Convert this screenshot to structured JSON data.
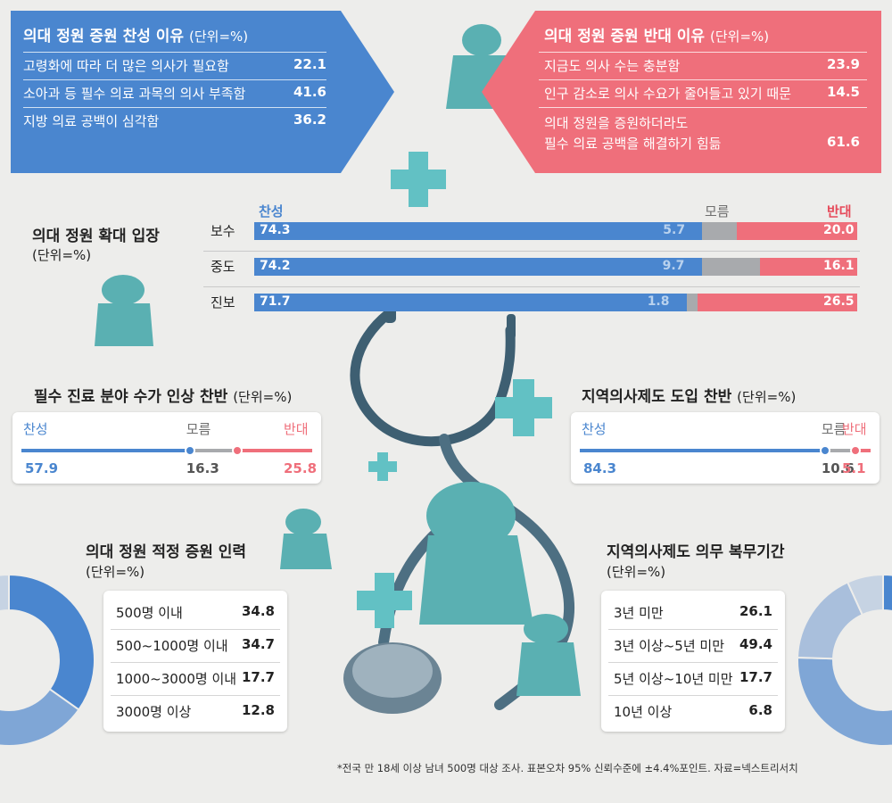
{
  "colors": {
    "support": "#4a86cf",
    "oppose": "#ef6f7b",
    "unknown": "#a8aaad",
    "teal": "#5ab0b2"
  },
  "reasons_for": {
    "title": "의대 정원 증원 찬성 이유",
    "unit": "(단위=%)",
    "items": [
      {
        "label": "고령화에 따라 더 많은 의사가 필요함",
        "value": "22.1"
      },
      {
        "label": "소아과 등 필수 의료 과목의 의사 부족함",
        "value": "41.6"
      },
      {
        "label": "지방 의료 공백이 심각함",
        "value": "36.2"
      }
    ]
  },
  "reasons_against": {
    "title": "의대 정원 증원 반대 이유",
    "unit": "(단위=%)",
    "items": [
      {
        "label": "지금도 의사 수는 충분함",
        "value": "23.9"
      },
      {
        "label": "인구 감소로 의사 수요가 줄어들고 있기 때문",
        "value": "14.5"
      },
      {
        "label": "의대 정원을 증원하더라도",
        "label2": "필수 의료 공백을 해결하기 힘듦",
        "value": "61.6"
      }
    ]
  },
  "icons": [
    "person-icon",
    "medical-cross-icon",
    "stethoscope-icon"
  ],
  "chart_data": [
    {
      "type": "bar",
      "title": "의대 정원 확대 입장",
      "unit": "(단위=%)",
      "legend": {
        "support": "찬성",
        "unknown": "모름",
        "oppose": "반대"
      },
      "categories": [
        "보수",
        "중도",
        "진보"
      ],
      "series": [
        {
          "name": "찬성",
          "values": [
            74.3,
            74.2,
            71.7
          ]
        },
        {
          "name": "모름",
          "values": [
            5.7,
            9.7,
            1.8
          ]
        },
        {
          "name": "반대",
          "values": [
            20.0,
            16.1,
            26.5
          ]
        }
      ],
      "labels": [
        [
          "74.3",
          "5.7",
          "20.0"
        ],
        [
          "74.2",
          "9.7",
          "16.1"
        ],
        [
          "71.7",
          "1.8",
          "26.5"
        ]
      ],
      "stacked": true
    },
    {
      "type": "bar",
      "title": "필수 진료 분야 수가 인상 찬반",
      "unit": "(단위=%)",
      "categories": [
        "찬성",
        "모름",
        "반대"
      ],
      "values": [
        57.9,
        16.3,
        25.8
      ],
      "labels": [
        "57.9",
        "16.3",
        "25.8"
      ]
    },
    {
      "type": "bar",
      "title": "지역의사제도 도입 찬반",
      "unit": "(단위=%)",
      "categories": [
        "찬성",
        "모름",
        "반대"
      ],
      "values": [
        84.3,
        10.6,
        5.1
      ],
      "labels": [
        "84.3",
        "10.6",
        "5.1"
      ]
    },
    {
      "type": "pie",
      "title": "의대 정원 적정 증원 인력",
      "unit": "(단위=%)",
      "categories": [
        "500명 이내",
        "500~1000명 이내",
        "1000~3000명 이내",
        "3000명 이상"
      ],
      "values": [
        34.8,
        34.7,
        17.7,
        12.8
      ],
      "labels": [
        "34.8",
        "34.7",
        "17.7",
        "12.8"
      ]
    },
    {
      "type": "pie",
      "title": "지역의사제도 의무 복무기간",
      "unit": "(단위=%)",
      "categories": [
        "3년 미만",
        "3년 이상~5년 미만",
        "5년 이상~10년 미만",
        "10년 이상"
      ],
      "values": [
        26.1,
        49.4,
        17.7,
        6.8
      ],
      "labels": [
        "26.1",
        "49.4",
        "17.7",
        "6.8"
      ]
    }
  ],
  "footnote": "*전국 만 18세 이상 남녀 500명 대상 조사. 표본오차 95% 신뢰수준에 ±4.4%포인트. 자료=넥스트리서치"
}
